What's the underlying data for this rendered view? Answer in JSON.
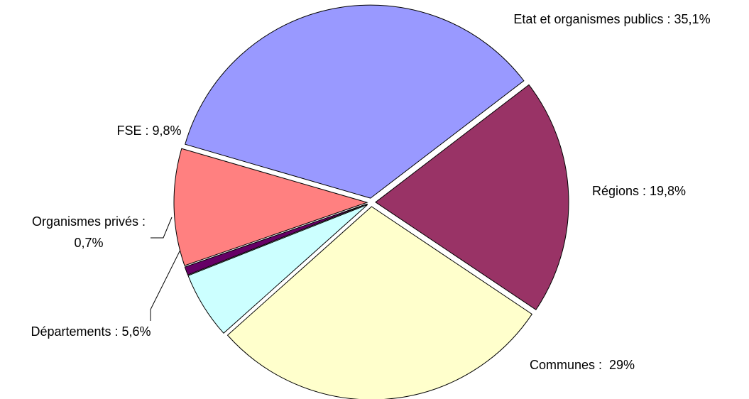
{
  "chart_data": {
    "type": "pie",
    "values": [
      35.1,
      19.8,
      29,
      5.6,
      0.7,
      9.8
    ],
    "value_labels": [
      "Etat et organismes publics : 35,1%",
      "Régions : 19,8%",
      "Communes :  29%",
      "Départements : 5,6%",
      "Organismes privés :\n0,7%",
      "FSE : 9,8%"
    ],
    "colors": [
      "#9999ff",
      "#993366",
      "#ffffcc",
      "#ccffff",
      "#660066",
      "#ff8080"
    ]
  }
}
